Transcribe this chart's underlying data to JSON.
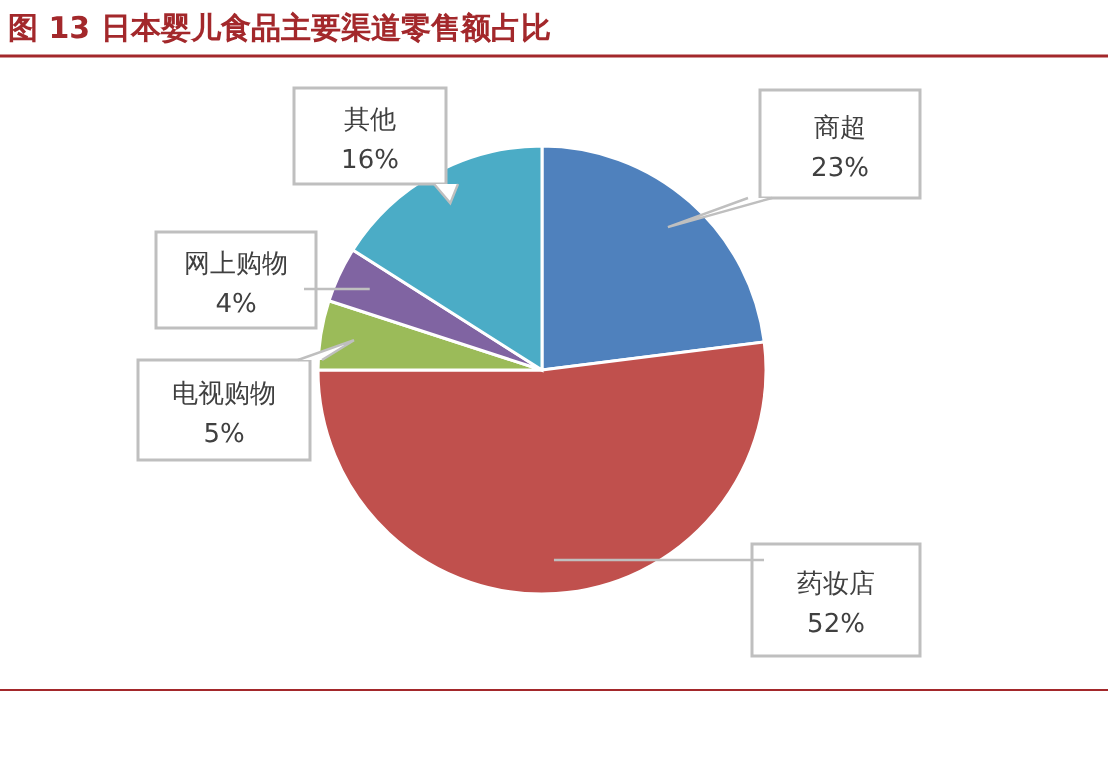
{
  "chart_data": {
    "type": "pie",
    "title": "图 13 日本婴儿食品主要渠道零售额占比",
    "categories": [
      "商超",
      "药妆店",
      "电视购物",
      "网上购物",
      "其他"
    ],
    "values": [
      23,
      52,
      5,
      4,
      16
    ],
    "value_labels": [
      "23%",
      "52%",
      "5%",
      "4%",
      "16%"
    ],
    "colors": [
      "#4f81bd",
      "#c0504d",
      "#9bbb59",
      "#8064a2",
      "#4bacc6"
    ]
  }
}
